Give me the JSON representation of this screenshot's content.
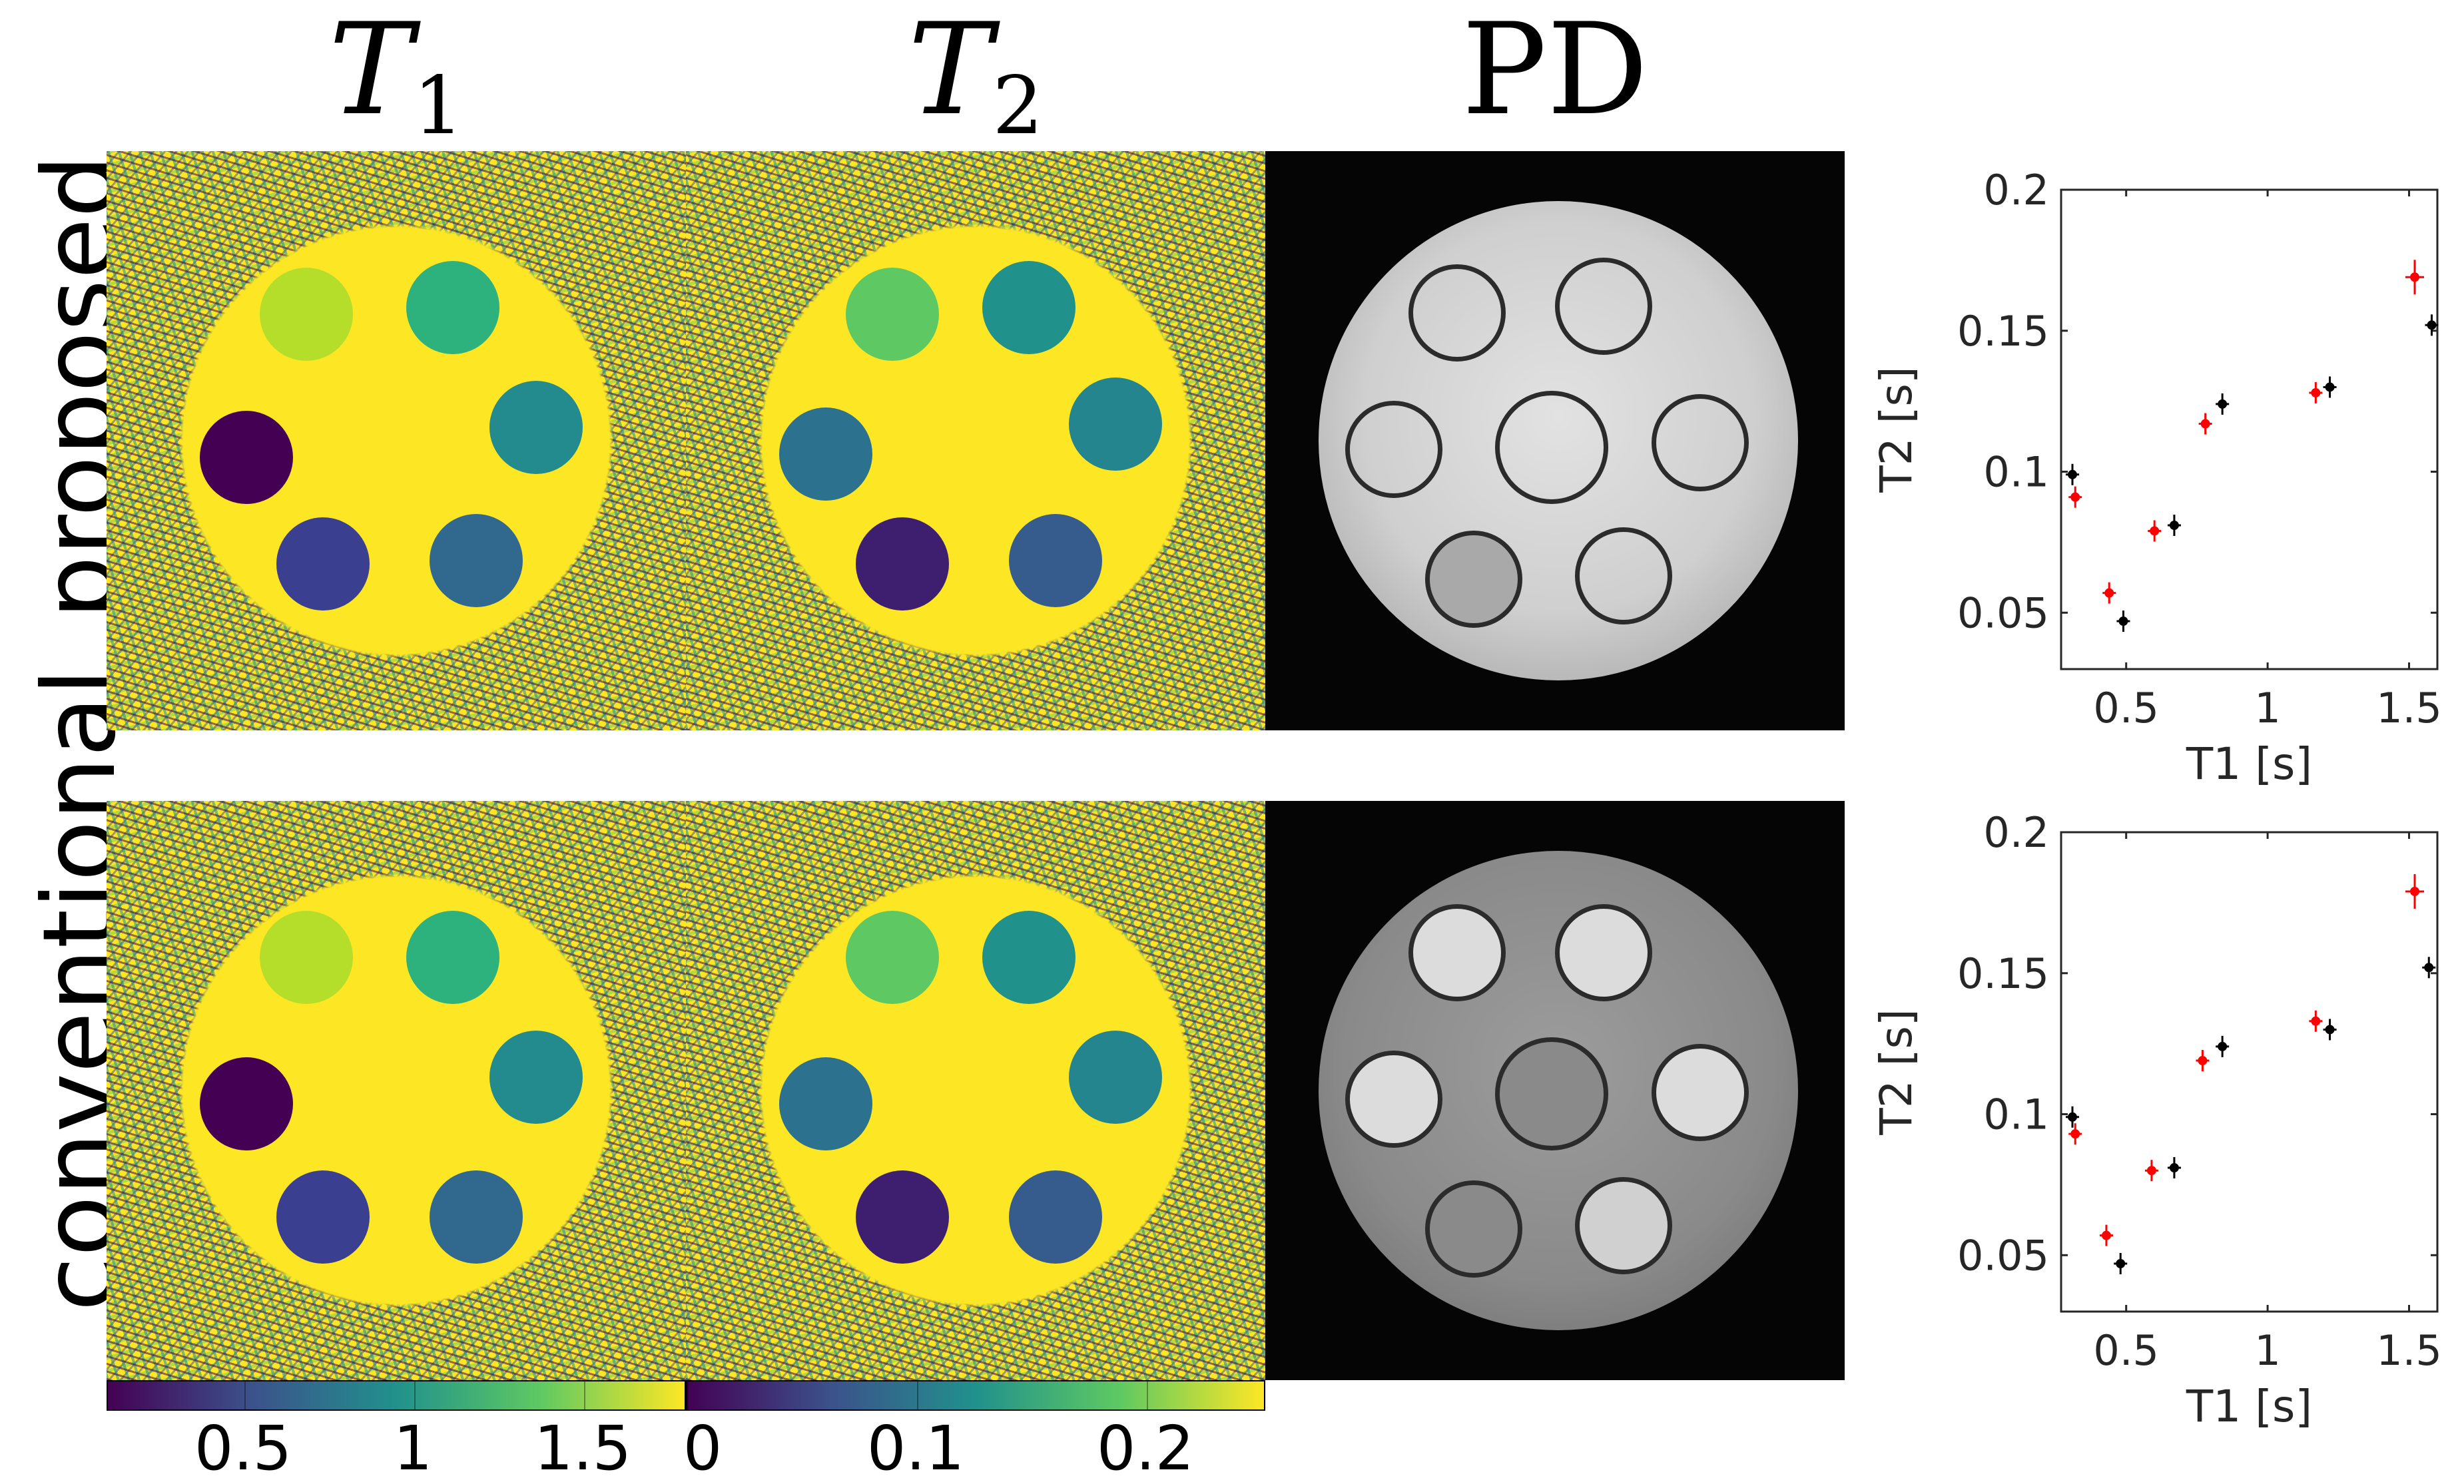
{
  "columns": {
    "t1": {
      "symbol": "T",
      "sub": "1"
    },
    "t2": {
      "symbol": "T",
      "sub": "2"
    },
    "pd": {
      "label": "PD"
    }
  },
  "rows": {
    "proposed": "proposed",
    "conventional": "conventional"
  },
  "colorbars": {
    "t1": {
      "ticks": [
        "0.5",
        "1",
        "1.5"
      ]
    },
    "t2": {
      "ticks": [
        "0",
        "0.1",
        "0.2"
      ]
    }
  },
  "colors": {
    "viridis_dark": "#440154",
    "viridis_blue": "#3b528b",
    "viridis_teal": "#21918c",
    "viridis_green": "#5ec962",
    "viridis_yellow": "#fde725",
    "reference_marker": "#ff0000",
    "measured_marker": "#000000"
  },
  "chart_data": [
    {
      "type": "scatter",
      "panel": "proposed",
      "xlabel": "T1 [s]",
      "ylabel": "T2 [s]",
      "xlim": [
        0.27,
        1.6
      ],
      "ylim": [
        0.03,
        0.2
      ],
      "xticks": [
        "0.5",
        "1",
        "1.5"
      ],
      "yticks": [
        "0.05",
        "0.1",
        "0.15",
        "0.2"
      ],
      "series": [
        {
          "color": "#ff0000",
          "points": [
            [
              0.32,
              0.091
            ],
            [
              0.44,
              0.057
            ],
            [
              0.6,
              0.079
            ],
            [
              0.78,
              0.117
            ],
            [
              1.17,
              0.128
            ],
            [
              1.52,
              0.169
            ]
          ]
        },
        {
          "color": "#000000",
          "points": [
            [
              0.31,
              0.099
            ],
            [
              0.49,
              0.047
            ],
            [
              0.67,
              0.081
            ],
            [
              0.84,
              0.124
            ],
            [
              1.22,
              0.13
            ],
            [
              1.58,
              0.152
            ]
          ]
        }
      ]
    },
    {
      "type": "scatter",
      "panel": "conventional",
      "xlabel": "T1 [s]",
      "ylabel": "T2 [s]",
      "xlim": [
        0.27,
        1.6
      ],
      "ylim": [
        0.03,
        0.2
      ],
      "xticks": [
        "0.5",
        "1",
        "1.5"
      ],
      "yticks": [
        "0.05",
        "0.1",
        "0.15",
        "0.2"
      ],
      "series": [
        {
          "color": "#ff0000",
          "points": [
            [
              0.32,
              0.093
            ],
            [
              0.43,
              0.057
            ],
            [
              0.59,
              0.08
            ],
            [
              0.77,
              0.119
            ],
            [
              1.17,
              0.133
            ],
            [
              1.52,
              0.179
            ]
          ]
        },
        {
          "color": "#000000",
          "points": [
            [
              0.31,
              0.099
            ],
            [
              0.48,
              0.047
            ],
            [
              0.67,
              0.081
            ],
            [
              0.84,
              0.124
            ],
            [
              1.22,
              0.13
            ],
            [
              1.57,
              0.152
            ]
          ]
        }
      ]
    }
  ]
}
